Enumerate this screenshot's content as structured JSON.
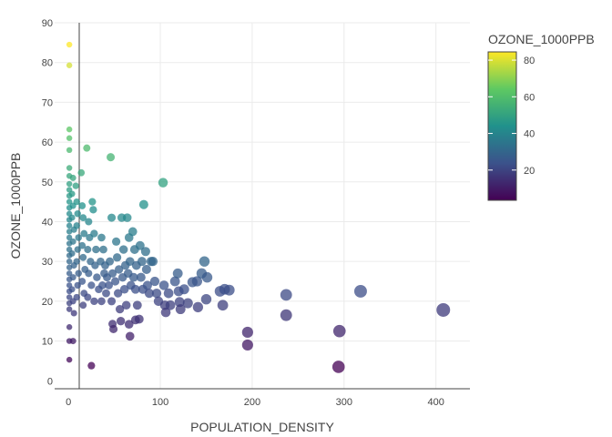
{
  "chart_data": {
    "type": "scatter",
    "xlabel": "POPULATION_DENSITY",
    "ylabel": "OZONE_1000PPB",
    "xlim": [
      -15,
      437
    ],
    "ylim": [
      -2,
      90
    ],
    "x_ticks": [
      0,
      100,
      200,
      300,
      400
    ],
    "y_ticks": [
      0,
      10,
      20,
      30,
      40,
      50,
      60,
      70,
      80,
      90
    ],
    "grid": true,
    "color_by": "OZONE_1000PPB",
    "size_by": "POPULATION_DENSITY",
    "colorbar": {
      "title": "OZONE_1000PPB",
      "range": [
        3.5,
        84.5
      ],
      "ticks": [
        20,
        40,
        60,
        80
      ],
      "colormap": [
        "#440154",
        "#3b528b",
        "#21918c",
        "#5ec962",
        "#fde725"
      ],
      "placement": "right"
    },
    "points": [
      [
        1,
        84.5
      ],
      [
        1,
        79.3
      ],
      [
        1,
        63.2
      ],
      [
        1,
        61
      ],
      [
        1,
        58
      ],
      [
        1,
        53.5
      ],
      [
        1,
        51.5
      ],
      [
        1,
        49.5
      ],
      [
        1,
        48
      ],
      [
        1,
        46.5
      ],
      [
        1,
        45
      ],
      [
        1,
        43.5
      ],
      [
        1,
        42
      ],
      [
        1,
        40.5
      ],
      [
        1,
        39
      ],
      [
        1,
        37.5
      ],
      [
        1,
        36
      ],
      [
        1,
        34.5
      ],
      [
        1,
        33
      ],
      [
        1,
        31.5
      ],
      [
        1,
        30
      ],
      [
        1,
        28.5
      ],
      [
        1,
        27
      ],
      [
        1,
        25.5
      ],
      [
        1,
        24
      ],
      [
        1,
        22.5
      ],
      [
        1,
        21
      ],
      [
        1,
        19.5
      ],
      [
        1,
        18
      ],
      [
        1,
        13.5
      ],
      [
        1,
        10
      ],
      [
        1,
        5.3
      ],
      [
        5,
        51
      ],
      [
        4,
        47
      ],
      [
        5,
        44
      ],
      [
        4,
        41
      ],
      [
        6,
        38
      ],
      [
        5,
        35
      ],
      [
        4,
        32
      ],
      [
        6,
        29
      ],
      [
        5,
        26
      ],
      [
        4,
        23
      ],
      [
        5,
        20
      ],
      [
        6,
        17
      ],
      [
        5,
        10
      ],
      [
        8,
        49
      ],
      [
        9,
        45
      ],
      [
        10,
        42
      ],
      [
        9,
        39
      ],
      [
        11,
        36
      ],
      [
        10,
        33
      ],
      [
        9,
        30
      ],
      [
        11,
        27
      ],
      [
        10,
        24
      ],
      [
        9,
        21
      ],
      [
        14,
        52.3
      ],
      [
        15,
        44
      ],
      [
        16,
        41
      ],
      [
        17,
        37
      ],
      [
        15,
        34
      ],
      [
        16,
        31
      ],
      [
        18,
        28
      ],
      [
        15,
        25
      ],
      [
        17,
        22
      ],
      [
        16,
        19
      ],
      [
        20,
        58.5
      ],
      [
        22,
        40
      ],
      [
        23,
        36
      ],
      [
        21,
        33
      ],
      [
        24,
        30
      ],
      [
        22,
        27
      ],
      [
        25,
        24
      ],
      [
        21,
        21
      ],
      [
        26,
        45
      ],
      [
        27,
        43
      ],
      [
        28,
        37
      ],
      [
        30,
        33
      ],
      [
        29,
        29
      ],
      [
        31,
        26
      ],
      [
        33,
        23
      ],
      [
        28,
        20
      ],
      [
        25,
        3.8
      ],
      [
        36,
        36
      ],
      [
        38,
        33
      ],
      [
        35,
        30
      ],
      [
        39,
        27
      ],
      [
        37,
        24
      ],
      [
        36,
        20
      ],
      [
        40,
        29
      ],
      [
        42,
        26
      ],
      [
        41,
        22
      ],
      [
        46,
        56.2
      ],
      [
        47,
        41
      ],
      [
        45,
        30
      ],
      [
        48,
        27
      ],
      [
        44,
        24
      ],
      [
        47,
        20
      ],
      [
        48,
        14.3
      ],
      [
        49,
        13
      ],
      [
        52,
        35
      ],
      [
        53,
        31
      ],
      [
        55,
        28
      ],
      [
        51,
        25
      ],
      [
        54,
        22
      ],
      [
        56,
        18
      ],
      [
        57,
        15
      ],
      [
        58,
        41
      ],
      [
        60,
        33
      ],
      [
        62,
        29
      ],
      [
        59,
        26
      ],
      [
        61,
        23
      ],
      [
        63,
        19
      ],
      [
        64,
        41
      ],
      [
        66,
        36
      ],
      [
        67,
        30
      ],
      [
        65,
        27
      ],
      [
        68,
        24
      ],
      [
        66,
        14.2
      ],
      [
        67,
        11.2
      ],
      [
        70,
        37.5
      ],
      [
        72,
        33
      ],
      [
        74,
        29
      ],
      [
        71,
        26
      ],
      [
        73,
        23
      ],
      [
        75,
        19
      ],
      [
        73,
        15.3
      ],
      [
        77,
        15.5
      ],
      [
        78,
        34
      ],
      [
        80,
        30
      ],
      [
        79,
        26
      ],
      [
        81,
        23
      ],
      [
        82,
        44.3
      ],
      [
        84,
        32.5
      ],
      [
        85,
        28
      ],
      [
        86,
        24
      ],
      [
        88,
        22
      ],
      [
        90,
        30
      ],
      [
        92,
        30
      ],
      [
        94,
        25
      ],
      [
        96,
        22
      ],
      [
        98,
        20
      ],
      [
        103,
        49.8
      ],
      [
        104,
        24
      ],
      [
        105,
        19
      ],
      [
        106,
        17.2
      ],
      [
        109,
        22
      ],
      [
        111,
        19
      ],
      [
        116,
        25
      ],
      [
        119,
        27
      ],
      [
        120,
        22.5
      ],
      [
        121,
        19.8
      ],
      [
        122,
        18
      ],
      [
        126,
        23
      ],
      [
        130,
        19.5
      ],
      [
        135,
        24.8
      ],
      [
        140,
        25
      ],
      [
        141,
        18.5
      ],
      [
        145,
        27
      ],
      [
        148,
        30
      ],
      [
        150,
        20.5
      ],
      [
        151,
        26
      ],
      [
        165,
        22.5
      ],
      [
        168,
        19
      ],
      [
        170,
        23
      ],
      [
        175,
        22.8
      ],
      [
        195,
        12.2
      ],
      [
        195,
        9
      ],
      [
        237,
        21.6
      ],
      [
        237,
        16.5
      ],
      [
        295,
        12.5
      ],
      [
        294,
        3.5
      ],
      [
        318,
        22.5
      ],
      [
        408,
        17.8
      ]
    ]
  }
}
